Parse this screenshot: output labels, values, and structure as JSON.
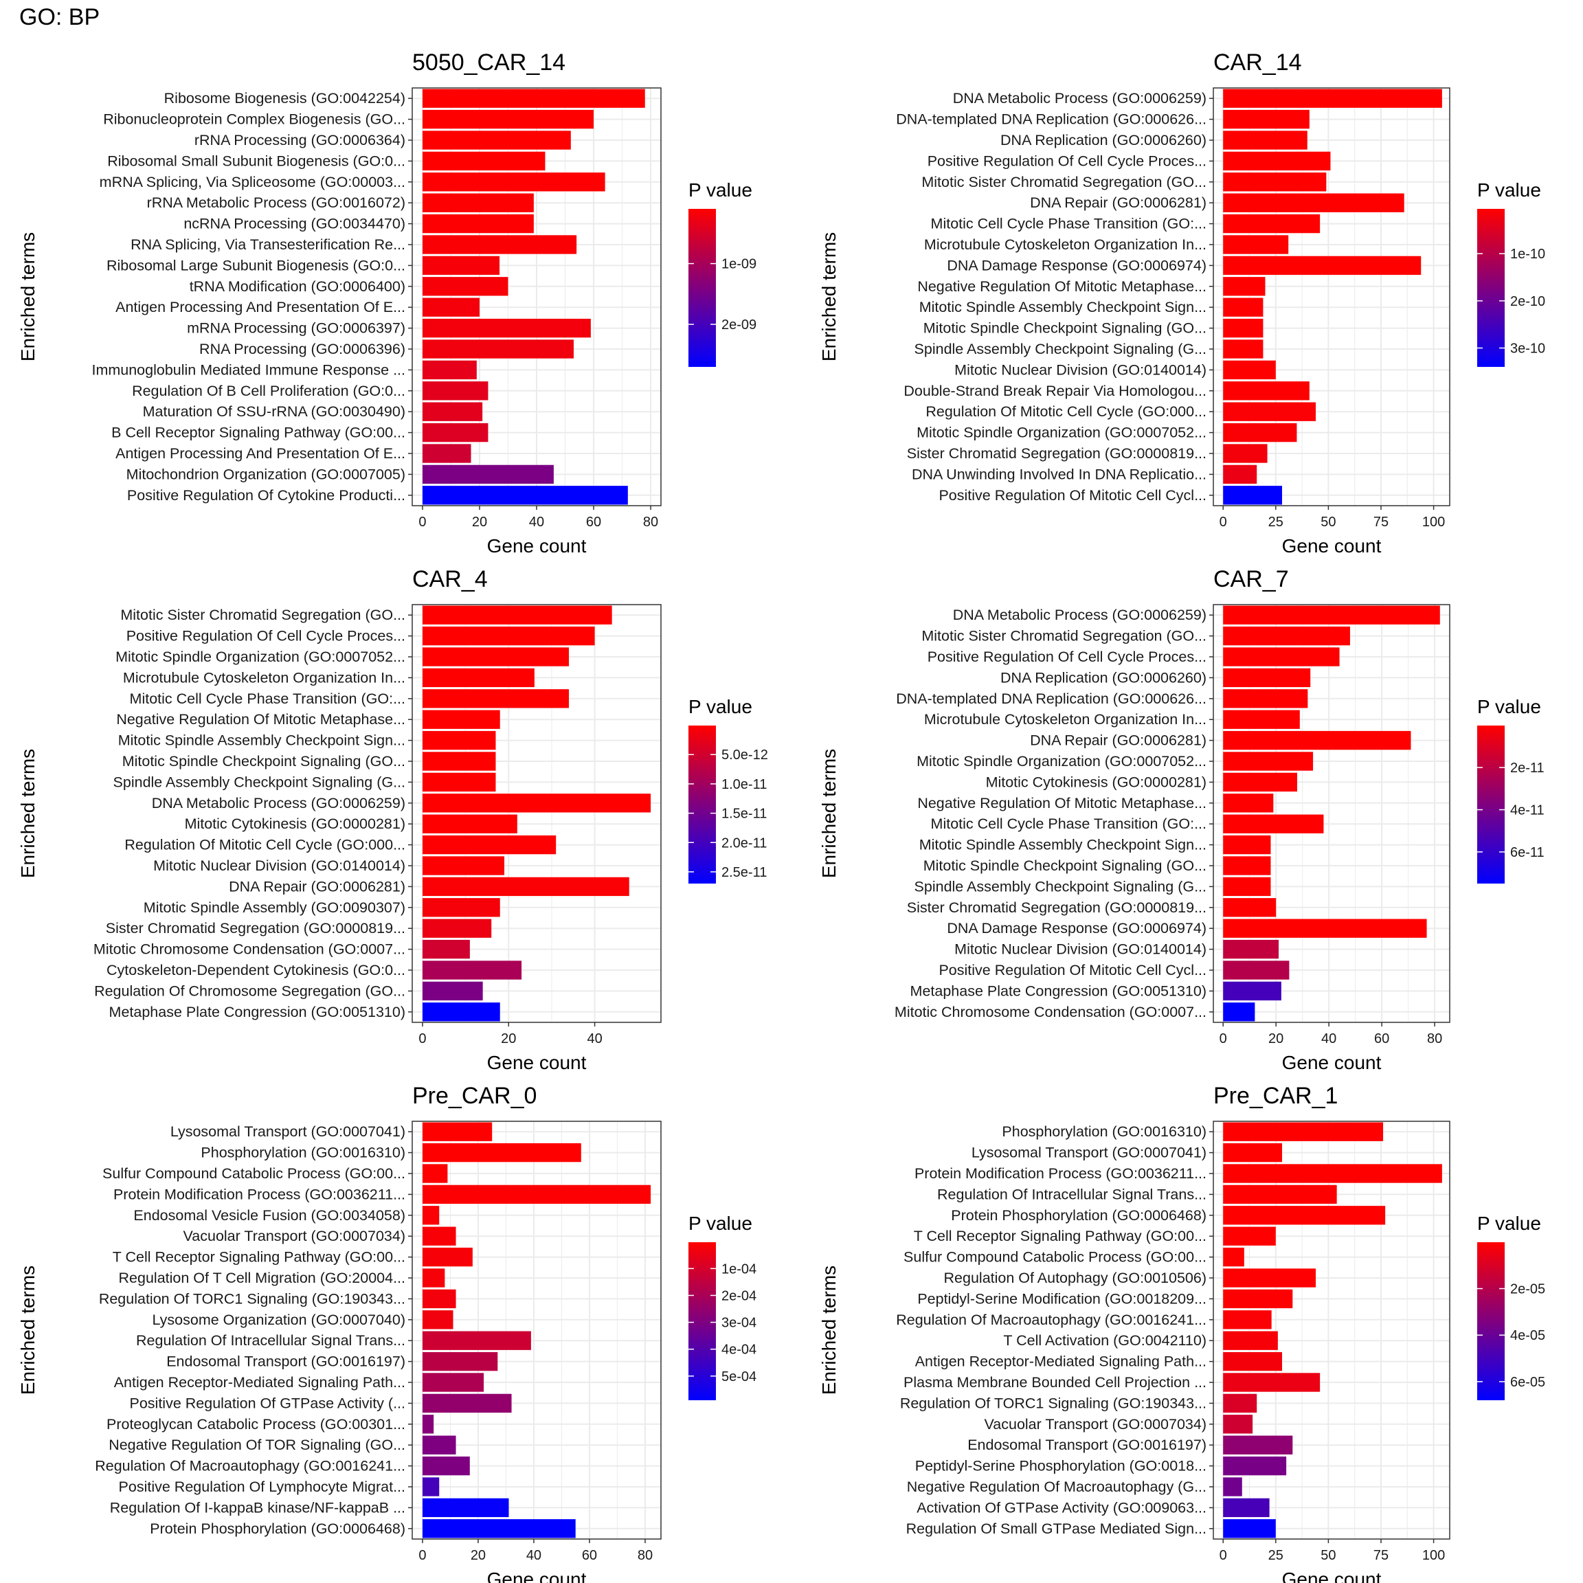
{
  "figure": {
    "title": "GO: BP"
  },
  "colors": {
    "low_p": "#FF0000",
    "high_p": "#0000FF",
    "grid": "#EBEBEB"
  },
  "chart_data": [
    {
      "type": "bar",
      "title": "5050_CAR_14",
      "xlabel": "Gene count",
      "ylabel": "Enriched terms",
      "xlim": [
        0,
        80
      ],
      "xticks": [
        0,
        20,
        40,
        60,
        80
      ],
      "xtick_labels": [
        "0",
        "20",
        "40",
        "60",
        "80"
      ],
      "legend": {
        "title": "P value",
        "placement": "right",
        "min": 1e-10,
        "max": 2.7e-09,
        "ticks": [
          1e-09,
          2e-09
        ],
        "labels": [
          "1e-09",
          "2e-09"
        ]
      },
      "categories": [
        "Ribosome Biogenesis (GO:0042254)",
        "Ribonucleoprotein Complex Biogenesis (GO...",
        "rRNA Processing (GO:0006364)",
        "Ribosomal Small Subunit Biogenesis (GO:0...",
        "mRNA Splicing, Via Spliceosome (GO:00003...",
        "rRNA Metabolic Process (GO:0016072)",
        "ncRNA Processing (GO:0034470)",
        "RNA Splicing, Via Transesterification Re...",
        "Ribosomal Large Subunit Biogenesis (GO:0...",
        "tRNA Modification (GO:0006400)",
        "Antigen Processing And Presentation Of E...",
        "mRNA Processing (GO:0006397)",
        "RNA Processing (GO:0006396)",
        "Immunoglobulin Mediated Immune Response ...",
        "Regulation Of B Cell Proliferation (GO:0...",
        "Maturation Of SSU-rRNA (GO:0030490)",
        "B Cell Receptor Signaling Pathway (GO:00...",
        "Antigen Processing And Presentation Of E...",
        "Mitochondrion Organization (GO:0007005)",
        "Positive Regulation Of Cytokine Producti..."
      ],
      "values": [
        78,
        60,
        52,
        43,
        64,
        39,
        39,
        54,
        27,
        30,
        20,
        59,
        53,
        19,
        23,
        21,
        23,
        17,
        46,
        72
      ],
      "pvalues": [
        1e-10,
        1e-10,
        1e-10,
        1e-10,
        1.1e-10,
        1.2e-10,
        1.2e-10,
        1.5e-10,
        1.8e-10,
        1.8e-10,
        2e-10,
        2.2e-10,
        2.4e-10,
        3.5e-10,
        4e-10,
        4e-10,
        4.5e-10,
        6e-10,
        1.45e-09,
        2.7e-09
      ]
    },
    {
      "type": "bar",
      "title": "CAR_14",
      "xlabel": "Gene count",
      "ylabel": "Enriched terms",
      "xlim": [
        0,
        103
      ],
      "xticks": [
        0,
        25,
        50,
        75,
        100
      ],
      "xtick_labels": [
        "0",
        "25",
        "50",
        "75",
        "100"
      ],
      "legend": {
        "title": "P value",
        "placement": "right",
        "min": 5e-12,
        "max": 3.4e-10,
        "ticks": [
          1e-10,
          2e-10,
          3e-10
        ],
        "labels": [
          "1e-10",
          "2e-10",
          "3e-10"
        ]
      },
      "categories": [
        "DNA Metabolic Process (GO:0006259)",
        "DNA-templated DNA Replication (GO:000626...",
        "DNA Replication (GO:0006260)",
        "Positive Regulation Of Cell Cycle Proces...",
        "Mitotic Sister Chromatid Segregation (GO...",
        "DNA Repair (GO:0006281)",
        "Mitotic Cell Cycle Phase Transition (GO:...",
        "Microtubule Cytoskeleton Organization In...",
        "DNA Damage Response (GO:0006974)",
        "Negative Regulation Of Mitotic Metaphase...",
        "Mitotic Spindle Assembly Checkpoint Sign...",
        "Mitotic Spindle Checkpoint Signaling (GO...",
        "Spindle Assembly Checkpoint Signaling (G...",
        "Mitotic Nuclear Division (GO:0140014)",
        "Double-Strand Break Repair Via Homologou...",
        "Regulation Of Mitotic Cell Cycle (GO:000...",
        "Mitotic Spindle Organization (GO:0007052...",
        "Sister Chromatid Segregation (GO:0000819...",
        "DNA Unwinding Involved In DNA Replicatio...",
        "Positive Regulation Of Mitotic Cell Cycl..."
      ],
      "values": [
        104,
        41,
        40,
        51,
        49,
        86,
        46,
        31,
        94,
        20,
        19,
        19,
        19,
        25,
        41,
        44,
        35,
        21,
        16,
        28
      ],
      "pvalues": [
        5e-12,
        5e-12,
        5e-12,
        5e-12,
        5e-12,
        5e-12,
        5e-12,
        5e-12,
        5e-12,
        5e-12,
        5e-12,
        5e-12,
        5e-12,
        5e-12,
        8e-12,
        1e-11,
        1.2e-11,
        2e-11,
        3e-11,
        3.4e-10
      ]
    },
    {
      "type": "bar",
      "title": "CAR_4",
      "xlabel": "Gene count",
      "ylabel": "Enriched terms",
      "xlim": [
        0,
        53
      ],
      "xticks": [
        0,
        20,
        40
      ],
      "xtick_labels": [
        "0",
        "20",
        "40"
      ],
      "legend": {
        "title": "P value",
        "placement": "right",
        "min": 5e-14,
        "max": 2.7e-11,
        "ticks": [
          5e-12,
          1e-11,
          1.5e-11,
          2e-11,
          2.5e-11
        ],
        "labels": [
          "5.0e-12",
          "1.0e-11",
          "1.5e-11",
          "2.0e-11",
          "2.5e-11"
        ]
      },
      "categories": [
        "Mitotic Sister Chromatid Segregation (GO...",
        "Positive Regulation Of Cell Cycle Proces...",
        "Mitotic Spindle Organization (GO:0007052...",
        "Microtubule Cytoskeleton Organization In...",
        "Mitotic Cell Cycle Phase Transition (GO:...",
        "Negative Regulation Of Mitotic Metaphase...",
        "Mitotic Spindle Assembly Checkpoint Sign...",
        "Mitotic Spindle Checkpoint Signaling (GO...",
        "Spindle Assembly Checkpoint Signaling (G...",
        "DNA Metabolic Process (GO:0006259)",
        "Mitotic Cytokinesis (GO:0000281)",
        "Regulation Of Mitotic Cell Cycle (GO:000...",
        "Mitotic Nuclear Division (GO:0140014)",
        "DNA Repair (GO:0006281)",
        "Mitotic Spindle Assembly (GO:0090307)",
        "Sister Chromatid Segregation (GO:0000819...",
        "Mitotic Chromosome Condensation (GO:0007...",
        "Cytoskeleton-Dependent Cytokinesis (GO:0...",
        "Regulation Of Chromosome Segregation (GO...",
        "Metaphase Plate Congression (GO:0051310)"
      ],
      "values": [
        44,
        40,
        34,
        26,
        34,
        18,
        17,
        17,
        17,
        53,
        22,
        31,
        19,
        48,
        18,
        16,
        11,
        23,
        14,
        18
      ],
      "pvalues": [
        5e-14,
        5e-14,
        5e-14,
        5e-14,
        5e-14,
        5e-14,
        5e-14,
        5e-14,
        5e-14,
        5e-14,
        1e-13,
        2e-13,
        3e-13,
        5e-13,
        1e-12,
        2e-12,
        5e-12,
        9e-12,
        1.4e-11,
        2.7e-11
      ]
    },
    {
      "type": "bar",
      "title": "CAR_7",
      "xlabel": "Gene count",
      "ylabel": "Enriched terms",
      "xlim": [
        0,
        82
      ],
      "xticks": [
        0,
        20,
        40,
        60,
        80
      ],
      "xtick_labels": [
        "0",
        "20",
        "40",
        "60",
        "80"
      ],
      "legend": {
        "title": "P value",
        "placement": "right",
        "min": 1e-13,
        "max": 7.5e-11,
        "ticks": [
          2e-11,
          4e-11,
          6e-11
        ],
        "labels": [
          "2e-11",
          "4e-11",
          "6e-11"
        ]
      },
      "categories": [
        "DNA Metabolic Process (GO:0006259)",
        "Mitotic Sister Chromatid Segregation (GO...",
        "Positive Regulation Of Cell Cycle Proces...",
        "DNA Replication (GO:0006260)",
        "DNA-templated DNA Replication (GO:000626...",
        "Microtubule Cytoskeleton Organization In...",
        "DNA Repair (GO:0006281)",
        "Mitotic Spindle Organization (GO:0007052...",
        "Mitotic Cytokinesis (GO:0000281)",
        "Negative Regulation Of Mitotic Metaphase...",
        "Mitotic Cell Cycle Phase Transition (GO:...",
        "Mitotic Spindle Assembly Checkpoint Sign...",
        "Mitotic Spindle Checkpoint Signaling (GO...",
        "Spindle Assembly Checkpoint Signaling (G...",
        "Sister Chromatid Segregation (GO:0000819...",
        "DNA Damage Response (GO:0006974)",
        "Mitotic Nuclear Division (GO:0140014)",
        "Positive Regulation Of Mitotic Cell Cycl...",
        "Metaphase Plate Congression (GO:0051310)",
        "Mitotic Chromosome Condensation (GO:0007..."
      ],
      "values": [
        82,
        48,
        44,
        33,
        32,
        29,
        71,
        34,
        28,
        19,
        38,
        18,
        18,
        18,
        20,
        77,
        21,
        25,
        22,
        12
      ],
      "pvalues": [
        1e-13,
        1e-13,
        1e-13,
        1e-13,
        1e-13,
        1e-13,
        1e-13,
        1e-13,
        1e-13,
        1e-13,
        1e-13,
        1e-13,
        1e-13,
        1e-13,
        1e-13,
        1e-13,
        1.8e-11,
        2.2e-11,
        5.5e-11,
        7.5e-11
      ]
    },
    {
      "type": "bar",
      "title": "Pre_CAR_0",
      "xlabel": "Gene count",
      "ylabel": "Enriched terms",
      "xlim": [
        0,
        82
      ],
      "xticks": [
        0,
        20,
        40,
        60,
        80
      ],
      "xtick_labels": [
        "0",
        "20",
        "40",
        "60",
        "80"
      ],
      "legend": {
        "title": "P value",
        "placement": "right",
        "min": 2e-06,
        "max": 0.00059,
        "ticks": [
          0.0001,
          0.0002,
          0.0003,
          0.0004,
          0.0005
        ],
        "labels": [
          "1e-04",
          "2e-04",
          "3e-04",
          "4e-04",
          "5e-04"
        ]
      },
      "categories": [
        "Lysosomal Transport (GO:0007041)",
        "Phosphorylation (GO:0016310)",
        "Sulfur Compound Catabolic Process (GO:00...",
        "Protein Modification Process (GO:0036211...",
        "Endosomal Vesicle Fusion (GO:0034058)",
        "Vacuolar Transport (GO:0007034)",
        "T Cell Receptor Signaling Pathway (GO:00...",
        "Regulation Of T Cell Migration (GO:20004...",
        "Regulation Of TORC1 Signaling (GO:190343...",
        "Lysosome Organization (GO:0007040)",
        "Regulation Of Intracellular Signal Trans...",
        "Endosomal Transport (GO:0016197)",
        "Antigen Receptor-Mediated Signaling Path...",
        "Positive Regulation Of GTPase Activity (...",
        "Proteoglycan Catabolic Process (GO:00301...",
        "Negative Regulation Of TOR Signaling (GO...",
        "Regulation Of Macroautophagy (GO:0016241...",
        "Positive Regulation Of Lymphocyte Migrat...",
        "Regulation Of I-kappaB kinase/NF-kappaB ...",
        "Protein Phosphorylation (GO:0006468)"
      ],
      "values": [
        25,
        57,
        9,
        82,
        6,
        12,
        18,
        8,
        12,
        11,
        39,
        27,
        22,
        32,
        4,
        12,
        17,
        6,
        31,
        55
      ],
      "pvalues": [
        2e-06,
        2e-06,
        5e-06,
        1e-05,
        1.2e-05,
        1.5e-05,
        1.8e-05,
        2e-05,
        3e-05,
        3.5e-05,
        0.00012,
        0.00016,
        0.00019,
        0.00025,
        0.00028,
        0.0003,
        0.0003,
        0.00043,
        0.00058,
        0.00059
      ]
    },
    {
      "type": "bar",
      "title": "Pre_CAR_1",
      "xlabel": "Gene count",
      "ylabel": "Enriched terms",
      "xlim": [
        0,
        103
      ],
      "xticks": [
        0,
        25,
        50,
        75,
        100
      ],
      "xtick_labels": [
        "0",
        "25",
        "50",
        "75",
        "100"
      ],
      "legend": {
        "title": "P value",
        "placement": "right",
        "min": 5e-08,
        "max": 6.8e-05,
        "ticks": [
          2e-05,
          4e-05,
          6e-05
        ],
        "labels": [
          "2e-05",
          "4e-05",
          "6e-05"
        ]
      },
      "categories": [
        "Phosphorylation (GO:0016310)",
        "Lysosomal Transport (GO:0007041)",
        "Protein Modification Process (GO:0036211...",
        "Regulation Of Intracellular Signal Trans...",
        "Protein Phosphorylation (GO:0006468)",
        "T Cell Receptor Signaling Pathway (GO:00...",
        "Sulfur Compound Catabolic Process (GO:00...",
        "Regulation Of Autophagy (GO:0010506)",
        "Peptidyl-Serine Modification (GO:0018209...",
        "Regulation Of Macroautophagy (GO:0016241...",
        "T Cell Activation (GO:0042110)",
        "Antigen Receptor-Mediated Signaling Path...",
        "Plasma Membrane Bounded Cell Projection ...",
        "Regulation Of TORC1 Signaling (GO:190343...",
        "Vacuolar Transport (GO:0007034)",
        "Endosomal Transport (GO:0016197)",
        "Peptidyl-Serine Phosphorylation (GO:0018...",
        "Negative Regulation Of Macroautophagy (G...",
        "Activation Of GTPase Activity (GO:009063...",
        "Regulation Of Small GTPase Mediated Sign..."
      ],
      "values": [
        76,
        28,
        104,
        54,
        77,
        25,
        10,
        44,
        33,
        23,
        26,
        28,
        46,
        16,
        14,
        33,
        30,
        9,
        22,
        25
      ],
      "pvalues": [
        5e-08,
        5e-08,
        5e-08,
        5e-08,
        5e-08,
        1e-07,
        1e-07,
        2e-07,
        5e-07,
        1e-06,
        2e-06,
        3e-06,
        5e-06,
        1e-05,
        1.3e-05,
        3e-05,
        3.6e-05,
        3.8e-05,
        4.9e-05,
        6.8e-05
      ]
    }
  ]
}
